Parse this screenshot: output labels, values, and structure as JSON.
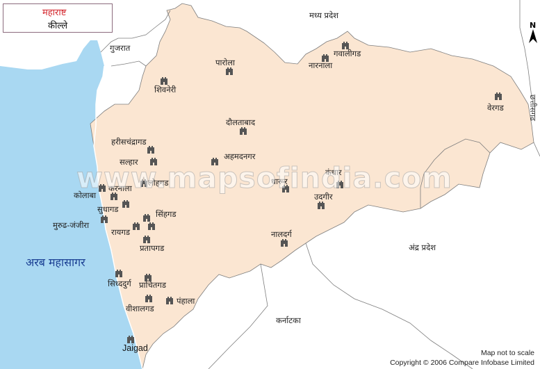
{
  "title": {
    "line1": "महाराष्ट",
    "line2": "कील्ले"
  },
  "sea_label": "अरब महासागर",
  "neighbors": {
    "gujarat": "गुजरात",
    "madhya_pradesh": "मध्य प्रदेश",
    "andhra_pradesh": "अंद्र प्रदेश",
    "karnataka": "कर्नाटका",
    "chhattisgarh": "छत्तीसगढ"
  },
  "forts": [
    {
      "name": "पारोला",
      "icon": "fort-icon"
    },
    {
      "name": "गवालीगड",
      "icon": "fort-icon"
    },
    {
      "name": "नारनाला",
      "icon": "fort-icon"
    },
    {
      "name": "शिवनेरी",
      "icon": "fort-icon"
    },
    {
      "name": "वेरगड",
      "icon": "fort-icon"
    },
    {
      "name": "दौलताबाद",
      "icon": "fort-icon"
    },
    {
      "name": "हरीसचंद्रागड",
      "icon": "fort-icon"
    },
    {
      "name": "अहमदनगर",
      "icon": "fort-icon"
    },
    {
      "name": "सल्हार",
      "icon": "fort-icon"
    },
    {
      "name": "लोहगड",
      "icon": "fort-icon"
    },
    {
      "name": "धारूर",
      "icon": "fort-icon"
    },
    {
      "name": "कंधार",
      "icon": "fort-icon"
    },
    {
      "name": "कोलाबा",
      "icon": "fort-icon"
    },
    {
      "name": "करनाला",
      "icon": "fort-icon"
    },
    {
      "name": "सुधागड",
      "icon": "fort-icon"
    },
    {
      "name": "उदगीर",
      "icon": "fort-icon"
    },
    {
      "name": "सिंहगड",
      "icon": "fort-icon"
    },
    {
      "name": "मुरुढ-जंजीरा",
      "icon": "fort-icon"
    },
    {
      "name": "रायगड",
      "icon": "fort-icon"
    },
    {
      "name": "नालदर्ग",
      "icon": "fort-icon"
    },
    {
      "name": "प्रतापगड",
      "icon": "fort-icon"
    },
    {
      "name": "सिध्ददुर्ग",
      "icon": "fort-icon"
    },
    {
      "name": "प्राचितगड",
      "icon": "fort-icon"
    },
    {
      "name": "पंहाला",
      "icon": "fort-icon"
    },
    {
      "name": "वीशालगड",
      "icon": "fort-icon"
    },
    {
      "name": "Jaigad",
      "icon": "fort-icon"
    }
  ],
  "north_label": "N",
  "watermark": "www.mapsofindia.com",
  "note": "Map not to scale",
  "copyright": "Copyright © 2006 Compare Infobase Limited",
  "colors": {
    "sea": "#a9d8f2",
    "state": "#fbe6d2",
    "border": "#7d7d7d",
    "title_red": "#d3232a",
    "sea_text": "#1a3f93"
  }
}
